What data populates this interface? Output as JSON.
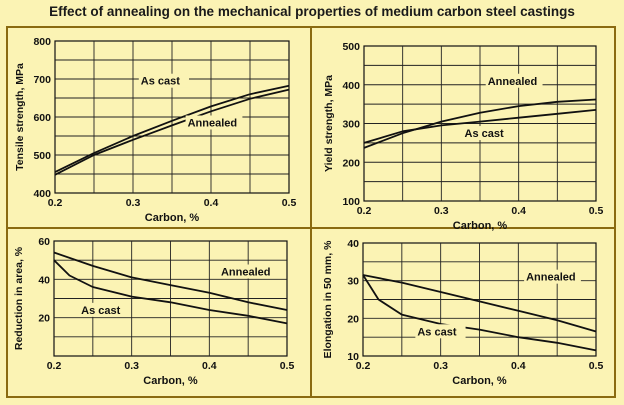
{
  "title": "Effect of annealing on the mechanical properties of medium carbon steel castings",
  "chart_data": [
    {
      "type": "line",
      "ylabel": "Tensile strength, MPa",
      "xlabel": "Carbon, %",
      "xlim": [
        0.2,
        0.5
      ],
      "ylim": [
        400,
        800
      ],
      "xticks": [
        0.2,
        0.3,
        0.4,
        0.5
      ],
      "xtick_labels": [
        "0.2",
        "0.3",
        "0.4",
        "0.5"
      ],
      "yticks": [
        400,
        500,
        600,
        700,
        800
      ],
      "ytick_labels": [
        "400",
        "500",
        "600",
        "700",
        "800"
      ],
      "x_grid_step": 0.05,
      "y_grid_step": 50,
      "series": [
        {
          "name": "As cast",
          "x": [
            0.2,
            0.25,
            0.3,
            0.35,
            0.4,
            0.45,
            0.5
          ],
          "y": [
            455,
            505,
            550,
            590,
            628,
            660,
            682
          ]
        },
        {
          "name": "Annealed",
          "x": [
            0.2,
            0.25,
            0.3,
            0.35,
            0.4,
            0.45,
            0.5
          ],
          "y": [
            448,
            500,
            540,
            578,
            615,
            648,
            672
          ]
        }
      ],
      "annotations": [
        {
          "text": "As cast",
          "x": 0.31,
          "y": 685
        },
        {
          "text": "Annealed",
          "x": 0.37,
          "y": 575
        }
      ]
    },
    {
      "type": "line",
      "ylabel": "Yield strength, MPa",
      "xlabel": "Carbon, %",
      "xlim": [
        0.2,
        0.5
      ],
      "ylim": [
        100,
        500
      ],
      "xticks": [
        0.2,
        0.3,
        0.4,
        0.5
      ],
      "xtick_labels": [
        "0.2",
        "0.3",
        "0.4",
        "0.5"
      ],
      "yticks": [
        100,
        200,
        300,
        400,
        500
      ],
      "ytick_labels": [
        "100",
        "200",
        "300",
        "400",
        "500"
      ],
      "x_grid_step": 0.05,
      "y_grid_step": 50,
      "series": [
        {
          "name": "Annealed",
          "x": [
            0.2,
            0.25,
            0.3,
            0.35,
            0.4,
            0.45,
            0.5
          ],
          "y": [
            237,
            275,
            305,
            328,
            345,
            356,
            362
          ]
        },
        {
          "name": "As cast",
          "x": [
            0.2,
            0.25,
            0.3,
            0.35,
            0.4,
            0.45,
            0.5
          ],
          "y": [
            250,
            280,
            295,
            305,
            315,
            325,
            335
          ]
        }
      ],
      "annotations": [
        {
          "text": "Annealed",
          "x": 0.36,
          "y": 400
        },
        {
          "text": "As cast",
          "x": 0.33,
          "y": 265
        }
      ]
    },
    {
      "type": "line",
      "ylabel": "Reduction in area, %",
      "xlabel": "Carbon, %",
      "xlim": [
        0.2,
        0.5
      ],
      "ylim": [
        0,
        60
      ],
      "xticks": [
        0.2,
        0.3,
        0.4,
        0.5
      ],
      "xtick_labels": [
        "0.2",
        "0.3",
        "0.4",
        "0.5"
      ],
      "yticks": [
        0,
        20,
        40,
        60
      ],
      "ytick_labels": [
        "",
        "20",
        "40",
        "60"
      ],
      "x_grid_step": 0.05,
      "y_grid_step": 10,
      "series": [
        {
          "name": "Annealed",
          "x": [
            0.2,
            0.25,
            0.3,
            0.35,
            0.4,
            0.45,
            0.5
          ],
          "y": [
            54,
            47,
            41,
            37,
            33,
            28,
            24
          ]
        },
        {
          "name": "As cast",
          "x": [
            0.2,
            0.22,
            0.25,
            0.3,
            0.35,
            0.4,
            0.45,
            0.5
          ],
          "y": [
            50,
            42,
            36,
            31,
            28,
            24,
            21,
            17
          ]
        }
      ],
      "annotations": [
        {
          "text": "Annealed",
          "x": 0.415,
          "y": 42
        },
        {
          "text": "As cast",
          "x": 0.235,
          "y": 22
        }
      ]
    },
    {
      "type": "line",
      "ylabel": "Elongation in 50 mm, %",
      "xlabel": "Carbon, %",
      "xlim": [
        0.2,
        0.5
      ],
      "ylim": [
        10,
        40
      ],
      "xticks": [
        0.2,
        0.3,
        0.4,
        0.5
      ],
      "xtick_labels": [
        "0.2",
        "0.3",
        "0.4",
        "0.5"
      ],
      "yticks": [
        10,
        20,
        30,
        40
      ],
      "ytick_labels": [
        "10",
        "20",
        "30",
        "40"
      ],
      "x_grid_step": 0.05,
      "y_grid_step": 5,
      "series": [
        {
          "name": "Annealed",
          "x": [
            0.2,
            0.25,
            0.3,
            0.35,
            0.4,
            0.45,
            0.5
          ],
          "y": [
            31.5,
            29.5,
            27,
            24.5,
            22,
            19.5,
            16.5
          ]
        },
        {
          "name": "As cast",
          "x": [
            0.2,
            0.22,
            0.25,
            0.28,
            0.3,
            0.35,
            0.4,
            0.45,
            0.5
          ],
          "y": [
            31.5,
            25,
            21,
            19.5,
            18.5,
            17,
            15,
            13.5,
            11.5
          ]
        }
      ],
      "annotations": [
        {
          "text": "Annealed",
          "x": 0.41,
          "y": 30
        },
        {
          "text": "As cast",
          "x": 0.27,
          "y": 15.5
        }
      ]
    }
  ]
}
